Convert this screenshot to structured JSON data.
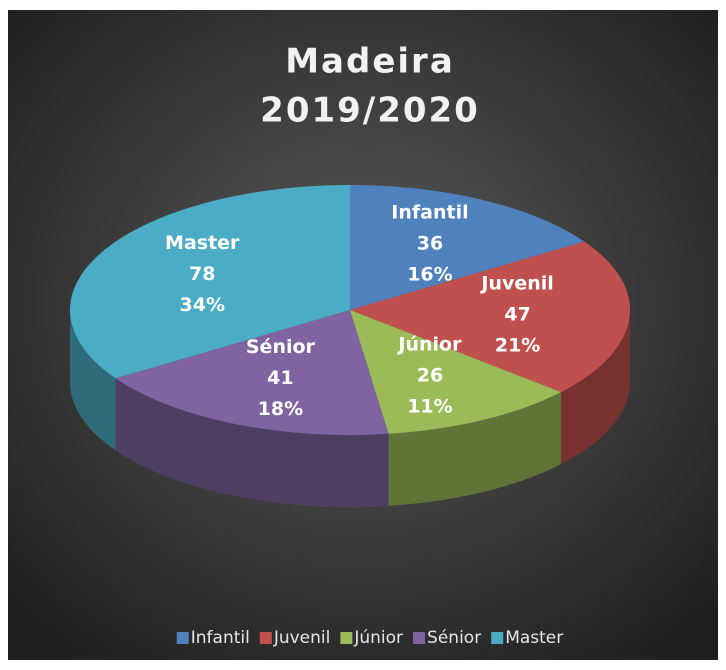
{
  "chart_data": {
    "type": "pie3d",
    "title": [
      "Madeira",
      "2019/2020"
    ],
    "categories": [
      "Infantil",
      "Juvenil",
      "Júnior",
      "Sénior",
      "Master"
    ],
    "values": [
      36,
      47,
      26,
      41,
      78
    ],
    "percent_labels": [
      "16%",
      "21%",
      "11%",
      "18%",
      "34%"
    ],
    "colors": [
      "#4f81bd",
      "#c0504d",
      "#9bbb59",
      "#8064a2",
      "#4bacc6"
    ],
    "legend": "bottom"
  }
}
